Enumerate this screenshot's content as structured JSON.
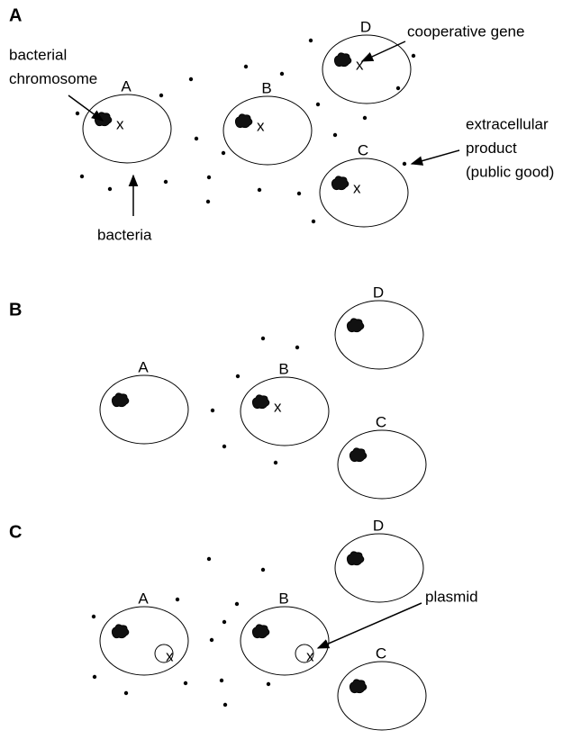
{
  "panels": [
    {
      "label": "A",
      "cells": [
        {
          "label": "A",
          "gene": "x"
        },
        {
          "label": "B",
          "gene": "x"
        },
        {
          "label": "C",
          "gene": "x"
        },
        {
          "label": "D",
          "gene": "x"
        }
      ],
      "annotations": [
        [
          "cooperative gene"
        ],
        [
          "bacterial",
          "chromosome"
        ],
        [
          "extracellular",
          "product",
          "(public good)"
        ],
        [
          "bacteria"
        ]
      ]
    },
    {
      "label": "B",
      "cells": [
        {
          "label": "A"
        },
        {
          "label": "B",
          "gene": "x"
        },
        {
          "label": "C"
        },
        {
          "label": "D"
        }
      ]
    },
    {
      "label": "C",
      "cells": [
        {
          "label": "A",
          "plasmid_gene": "x"
        },
        {
          "label": "B",
          "plasmid_gene": "x"
        },
        {
          "label": "C"
        },
        {
          "label": "D"
        }
      ],
      "annotations": [
        [
          "plasmid"
        ]
      ]
    }
  ]
}
